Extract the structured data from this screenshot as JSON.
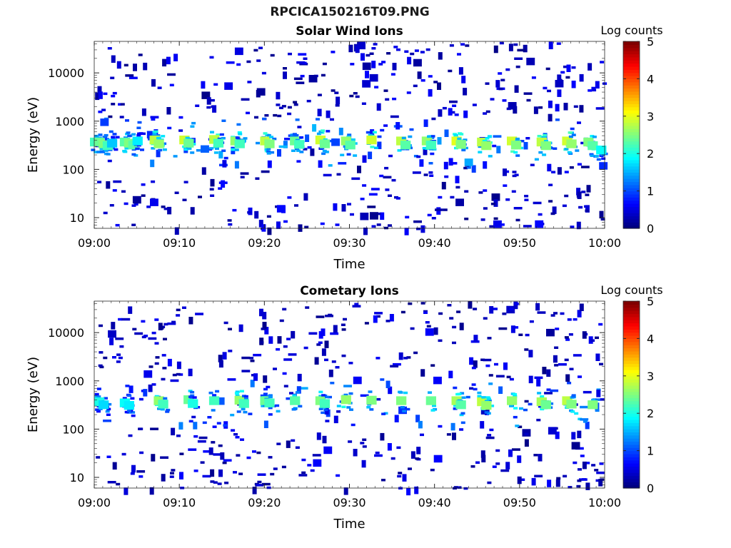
{
  "figure": {
    "title": "RPCICA150216T09.PNG"
  },
  "chart_data": [
    {
      "type": "heatmap",
      "title": "Solar Wind Ions",
      "xlabel": "Time",
      "ylabel": "Energy (eV)",
      "x_ticks": [
        "09:00",
        "09:10",
        "09:20",
        "09:30",
        "09:40",
        "09:50",
        "10:00"
      ],
      "y_ticks": [
        "10",
        "100",
        "1000",
        "10000"
      ],
      "y_scale": "log",
      "ylim": [
        6,
        45000
      ],
      "xlim": [
        "09:00",
        "10:00"
      ],
      "colorbar": {
        "label": "Log counts",
        "ticks": [
          "0",
          "1",
          "2",
          "3",
          "4",
          "5"
        ],
        "range": [
          0,
          5
        ],
        "colormap": "jet"
      },
      "cells": [
        {
          "t": 0.0,
          "e": 380,
          "v": 2.2
        },
        {
          "t": 0.5,
          "e": 380,
          "v": 2.4
        },
        {
          "t": 1.0,
          "e": 350,
          "v": 2.5
        },
        {
          "t": 1.5,
          "e": 320,
          "v": 2.2
        },
        {
          "t": 2.0,
          "e": 360,
          "v": 1.6
        },
        {
          "t": 3.5,
          "e": 380,
          "v": 2.3
        },
        {
          "t": 4.0,
          "e": 360,
          "v": 2.5
        },
        {
          "t": 4.5,
          "e": 330,
          "v": 2.3
        },
        {
          "t": 5.0,
          "e": 400,
          "v": 1.8
        },
        {
          "t": 7.0,
          "e": 420,
          "v": 2.8
        },
        {
          "t": 7.5,
          "e": 350,
          "v": 2.6
        },
        {
          "t": 10.5,
          "e": 420,
          "v": 2.9
        },
        {
          "t": 11.0,
          "e": 360,
          "v": 2.4
        },
        {
          "t": 14.0,
          "e": 430,
          "v": 2.8
        },
        {
          "t": 14.5,
          "e": 360,
          "v": 2.2
        },
        {
          "t": 16.5,
          "e": 400,
          "v": 2.6
        },
        {
          "t": 17.0,
          "e": 350,
          "v": 2.2
        },
        {
          "t": 20.0,
          "e": 400,
          "v": 2.8
        },
        {
          "t": 20.5,
          "e": 350,
          "v": 2.5
        },
        {
          "t": 23.5,
          "e": 400,
          "v": 2.4
        },
        {
          "t": 24.0,
          "e": 340,
          "v": 2.2
        },
        {
          "t": 26.5,
          "e": 420,
          "v": 2.9
        },
        {
          "t": 27.0,
          "e": 350,
          "v": 2.4
        },
        {
          "t": 29.5,
          "e": 400,
          "v": 2.6
        },
        {
          "t": 30.0,
          "e": 330,
          "v": 2.3
        },
        {
          "t": 32.5,
          "e": 420,
          "v": 2.9
        },
        {
          "t": 36.0,
          "e": 400,
          "v": 2.8
        },
        {
          "t": 36.5,
          "e": 330,
          "v": 2.3
        },
        {
          "t": 39.0,
          "e": 400,
          "v": 2.6
        },
        {
          "t": 39.5,
          "e": 330,
          "v": 2.2
        },
        {
          "t": 42.5,
          "e": 400,
          "v": 3.0
        },
        {
          "t": 43.0,
          "e": 340,
          "v": 2.5
        },
        {
          "t": 45.5,
          "e": 380,
          "v": 2.8
        },
        {
          "t": 46.0,
          "e": 320,
          "v": 2.6
        },
        {
          "t": 49.0,
          "e": 400,
          "v": 2.9
        },
        {
          "t": 49.5,
          "e": 330,
          "v": 2.5
        },
        {
          "t": 52.5,
          "e": 380,
          "v": 2.8
        },
        {
          "t": 53.0,
          "e": 320,
          "v": 2.5
        },
        {
          "t": 55.5,
          "e": 400,
          "v": 2.9
        },
        {
          "t": 56.0,
          "e": 350,
          "v": 2.6
        },
        {
          "t": 58.0,
          "e": 380,
          "v": 2.5
        },
        {
          "t": 58.5,
          "e": 320,
          "v": 2.3
        },
        {
          "t": 59.5,
          "e": 260,
          "v": 1.9
        }
      ]
    },
    {
      "type": "heatmap",
      "title": "Cometary Ions",
      "xlabel": "Time",
      "ylabel": "Energy (eV)",
      "x_ticks": [
        "09:00",
        "09:10",
        "09:20",
        "09:30",
        "09:40",
        "09:50",
        "10:00"
      ],
      "y_ticks": [
        "10",
        "100",
        "1000",
        "10000"
      ],
      "y_scale": "log",
      "ylim": [
        6,
        45000
      ],
      "xlim": [
        "09:00",
        "10:00"
      ],
      "colorbar": {
        "label": "Log counts",
        "ticks": [
          "0",
          "1",
          "2",
          "3",
          "4",
          "5"
        ],
        "range": [
          0,
          5
        ],
        "colormap": "jet"
      },
      "cells": [
        {
          "t": 0.5,
          "e": 380,
          "v": 2.0
        },
        {
          "t": 1.0,
          "e": 330,
          "v": 1.7
        },
        {
          "t": 3.5,
          "e": 360,
          "v": 1.9
        },
        {
          "t": 4.0,
          "e": 320,
          "v": 1.8
        },
        {
          "t": 7.5,
          "e": 400,
          "v": 2.6
        },
        {
          "t": 8.0,
          "e": 340,
          "v": 2.2
        },
        {
          "t": 11.0,
          "e": 420,
          "v": 2.4
        },
        {
          "t": 11.5,
          "e": 350,
          "v": 2.0
        },
        {
          "t": 14.0,
          "e": 400,
          "v": 2.2
        },
        {
          "t": 17.0,
          "e": 410,
          "v": 2.6
        },
        {
          "t": 17.5,
          "e": 350,
          "v": 2.2
        },
        {
          "t": 20.0,
          "e": 400,
          "v": 2.4
        },
        {
          "t": 20.5,
          "e": 360,
          "v": 2.2
        },
        {
          "t": 23.5,
          "e": 400,
          "v": 2.3
        },
        {
          "t": 26.5,
          "e": 400,
          "v": 2.5
        },
        {
          "t": 27.0,
          "e": 350,
          "v": 2.2
        },
        {
          "t": 29.5,
          "e": 420,
          "v": 2.6
        },
        {
          "t": 32.5,
          "e": 410,
          "v": 2.5
        },
        {
          "t": 36.0,
          "e": 400,
          "v": 2.5
        },
        {
          "t": 39.5,
          "e": 400,
          "v": 2.4
        },
        {
          "t": 42.5,
          "e": 400,
          "v": 2.7
        },
        {
          "t": 43.0,
          "e": 330,
          "v": 2.3
        },
        {
          "t": 45.5,
          "e": 380,
          "v": 2.8
        },
        {
          "t": 46.0,
          "e": 320,
          "v": 2.6
        },
        {
          "t": 49.0,
          "e": 400,
          "v": 2.6
        },
        {
          "t": 52.5,
          "e": 380,
          "v": 2.7
        },
        {
          "t": 53.0,
          "e": 330,
          "v": 2.4
        },
        {
          "t": 55.5,
          "e": 400,
          "v": 2.8
        },
        {
          "t": 56.0,
          "e": 340,
          "v": 2.5
        },
        {
          "t": 58.5,
          "e": 330,
          "v": 2.5
        }
      ]
    }
  ]
}
